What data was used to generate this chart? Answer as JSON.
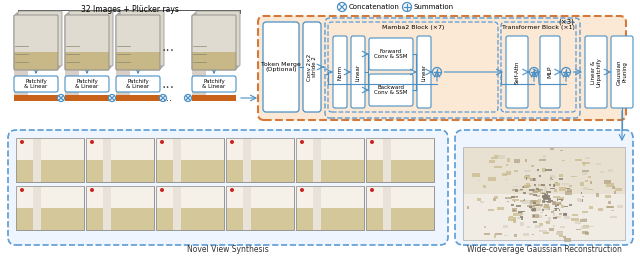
{
  "bg_color": "#ffffff",
  "fig_width": 6.4,
  "fig_height": 2.57,
  "top_label": "32 Images + Plücker rays",
  "legend_concat": "Concatenation",
  "legend_sum": "Summation",
  "token_merge_label": "Token Merge\n(Optional)",
  "conv_label": "Conv 2×2\nstride 2",
  "mamba_block_label": "Mamba2 Block (×7)",
  "transformer_block_label": "Transformer Block (×1)",
  "x3_label": "(×3)",
  "norm_label": "Norm",
  "linear1_label": "Linear",
  "forward_label": "Forward\nConv & SSM",
  "backward_label": "Backward\nConv & SSM",
  "linear2_label": "Linear",
  "self_attn_label": "Self-Attn",
  "mlp_label": "MLP",
  "linear_unpatchify_label": "Linear &\nUnpatchify",
  "gaussian_pruning_label": "Gaussian\nPruning",
  "novel_view_label": "Novel View Synthesis",
  "gaussian_recon_label": "Wide-coverage Gaussian Reconstruction",
  "main_bg_color": "#fbe8d5",
  "box_border_blue": "#4a90c4",
  "dashed_blue": "#5b9bd5",
  "arrow_color": "#4a90c4",
  "orange_border": "#d4793a",
  "orange_bar": "#c8611a",
  "patchify_label": "Patchify\n& Linear"
}
